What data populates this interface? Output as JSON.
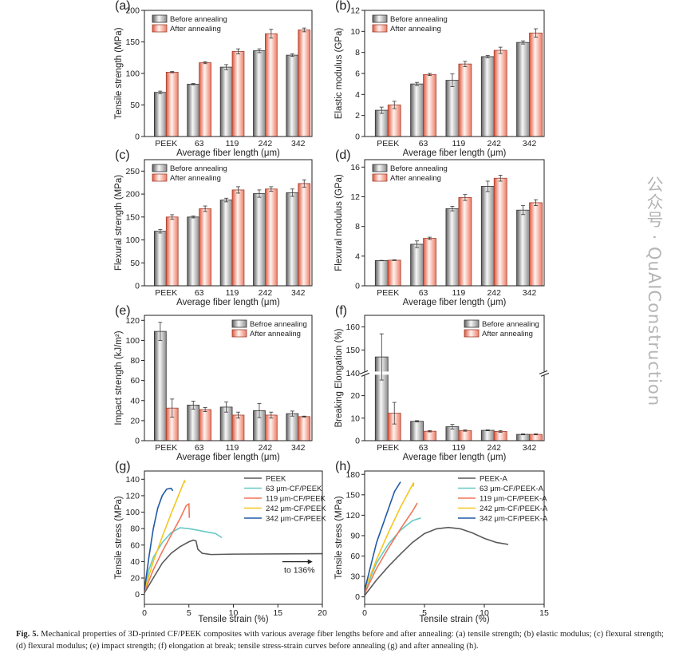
{
  "caption": {
    "label": "Fig. 5.",
    "text": "Mechanical properties of 3D-printed CF/PEEK composites with various average fiber lengths before and after annealing: (a) tensile strength; (b) elastic modulus; (c) flexural strength; (d) flexural modulus; (e) impact strength; (f) elongation at break; tensile stress-strain curves before annealing (g) and after annealing (h)."
  },
  "watermark": "公众号 · QuAIConstruction",
  "colors": {
    "before": "#808080",
    "after": "#e8705a"
  },
  "chart_data": [
    {
      "panel": "(a)",
      "type": "bar",
      "categories": [
        "PEEK",
        "63",
        "119",
        "242",
        "342"
      ],
      "xlabel": "Average fiber length (μm)",
      "ylabel": "Tensile strength (MPa)",
      "ylim": [
        0,
        200
      ],
      "yticks": [
        0,
        50,
        100,
        150,
        200
      ],
      "legend": "top-left",
      "series": [
        {
          "name": "Before annealing",
          "values": [
            70,
            83,
            110,
            136,
            129
          ],
          "errors": [
            2,
            1,
            4,
            3,
            2
          ]
        },
        {
          "name": "After annealing",
          "values": [
            102,
            117,
            135,
            163,
            169
          ],
          "errors": [
            1,
            1.5,
            4,
            7,
            3
          ]
        }
      ]
    },
    {
      "panel": "(b)",
      "type": "bar",
      "categories": [
        "PEEK",
        "63",
        "119",
        "242",
        "342"
      ],
      "xlabel": "Average fiber length (μm)",
      "ylabel": "Elastic modulus (GPa)",
      "ylim": [
        0,
        12
      ],
      "yticks": [
        0,
        2,
        4,
        6,
        8,
        10,
        12
      ],
      "legend": "top-left",
      "series": [
        {
          "name": "Before annealing",
          "values": [
            2.5,
            5.0,
            5.35,
            7.6,
            8.95
          ],
          "errors": [
            0.3,
            0.15,
            0.6,
            0.1,
            0.15
          ]
        },
        {
          "name": "After annealing",
          "values": [
            3.0,
            5.9,
            6.9,
            8.2,
            9.85
          ],
          "errors": [
            0.35,
            0.1,
            0.25,
            0.3,
            0.4
          ]
        }
      ]
    },
    {
      "panel": "(c)",
      "type": "bar",
      "categories": [
        "PEEK",
        "63",
        "119",
        "242",
        "342"
      ],
      "xlabel": "Average fiber length (μm)",
      "ylabel": "Flexural strength (MPa)",
      "ylim": [
        0,
        275
      ],
      "yticks": [
        0,
        50,
        100,
        150,
        200,
        250
      ],
      "legend": "top-left",
      "series": [
        {
          "name": "Before annealing",
          "values": [
            119,
            150,
            187,
            201,
            203
          ],
          "errors": [
            4,
            2,
            4,
            8,
            8
          ]
        },
        {
          "name": "After annealing",
          "values": [
            150,
            168,
            209,
            211,
            223
          ],
          "errors": [
            5,
            6,
            7,
            5,
            8
          ]
        }
      ]
    },
    {
      "panel": "(d)",
      "type": "bar",
      "categories": [
        "PEEK",
        "63",
        "119",
        "242",
        "342"
      ],
      "xlabel": "Average fiber length (μm)",
      "ylabel": "Flexural modulus (GPa)",
      "ylim": [
        0,
        17
      ],
      "yticks": [
        0,
        4,
        8,
        12,
        16
      ],
      "legend": "top-left",
      "series": [
        {
          "name": "Before annealing",
          "values": [
            3.4,
            5.6,
            10.4,
            13.4,
            10.2
          ],
          "errors": [
            0.03,
            0.45,
            0.3,
            0.7,
            0.6
          ]
        },
        {
          "name": "After annealing",
          "values": [
            3.45,
            6.4,
            11.9,
            14.5,
            11.2
          ],
          "errors": [
            0.05,
            0.15,
            0.4,
            0.4,
            0.4
          ]
        }
      ]
    },
    {
      "panel": "(e)",
      "type": "bar",
      "categories": [
        "PEEK",
        "63",
        "119",
        "242",
        "342"
      ],
      "xlabel": "Average fiber length (μm)",
      "ylabel": "Impact strength (kJ/m²)",
      "ylim": [
        0,
        125
      ],
      "yticks": [
        0,
        20,
        40,
        60,
        80,
        100,
        120
      ],
      "legend": "top-right",
      "series": [
        {
          "name": "Befroe annealing",
          "values": [
            109,
            35.5,
            33.5,
            30,
            27
          ],
          "errors": [
            9,
            4,
            5,
            7,
            2.5
          ]
        },
        {
          "name": "After annealing",
          "values": [
            32.5,
            31,
            25.5,
            25.5,
            24
          ],
          "errors": [
            9,
            2,
            3,
            3,
            0.5
          ]
        }
      ]
    },
    {
      "panel": "(f)",
      "type": "bar",
      "categories": [
        "PEEK",
        "63",
        "119",
        "242",
        "342"
      ],
      "xlabel": "Average fiber length (μm)",
      "ylabel": "Breaking Elongation (%)",
      "ylim": [
        0,
        165
      ],
      "axis_break": [
        30,
        140
      ],
      "yticks": [
        0,
        10,
        20,
        140,
        150,
        160
      ],
      "legend": "top-right",
      "series": [
        {
          "name": "Before annealing",
          "values": [
            147,
            8.6,
            6.2,
            4.6,
            2.8
          ],
          "errors": [
            10,
            0.3,
            1,
            0.2,
            0.2
          ]
        },
        {
          "name": "After annealing",
          "values": [
            12.2,
            4.2,
            4.5,
            4.1,
            2.8
          ],
          "errors": [
            4.8,
            0.3,
            0.3,
            0.4,
            0.2
          ]
        }
      ]
    },
    {
      "panel": "(g)",
      "type": "line",
      "xlabel": "Tensile strain (%)",
      "ylabel": "Tensile stress (MPa)",
      "xlim": [
        0,
        20
      ],
      "xticks": [
        0,
        5,
        10,
        15,
        20
      ],
      "ylim": [
        -12,
        150
      ],
      "yticks": [
        0,
        20,
        40,
        60,
        80,
        100,
        120,
        140
      ],
      "legend": "top-right",
      "annotation": "to 136%",
      "series": [
        {
          "name": "PEEK",
          "color": "#5a5a5a",
          "points": [
            [
              0,
              2
            ],
            [
              1,
              20
            ],
            [
              2,
              38
            ],
            [
              3,
              50
            ],
            [
              4,
              58
            ],
            [
              5,
              64
            ],
            [
              5.5,
              66
            ],
            [
              5.8,
              65
            ],
            [
              6,
              55
            ],
            [
              6.5,
              50
            ],
            [
              7.5,
              48.5
            ],
            [
              10,
              49
            ],
            [
              20,
              49.5
            ]
          ]
        },
        {
          "name": "63 μm-CF/PEEK",
          "color": "#66c9c4",
          "points": [
            [
              0,
              5
            ],
            [
              0.5,
              30
            ],
            [
              1,
              45
            ],
            [
              2,
              63
            ],
            [
              3,
              75
            ],
            [
              4,
              81
            ],
            [
              5,
              80
            ],
            [
              6,
              78
            ],
            [
              7,
              76
            ],
            [
              8,
              74
            ],
            [
              8.7,
              69
            ]
          ]
        },
        {
          "name": "119 μm-CF/PEEK",
          "color": "#f0765a",
          "points": [
            [
              0,
              3
            ],
            [
              1,
              30
            ],
            [
              2,
              52
            ],
            [
              3,
              72
            ],
            [
              4,
              92
            ],
            [
              4.7,
              108
            ],
            [
              5,
              110
            ],
            [
              5.05,
              93
            ]
          ]
        },
        {
          "name": "242 μm-CF/PEEK",
          "color": "#f6c51f",
          "points": [
            [
              0,
              5
            ],
            [
              1,
              40
            ],
            [
              2,
              70
            ],
            [
              3,
              98
            ],
            [
              4,
              125
            ],
            [
              4.5,
              138
            ],
            [
              4.6,
              136
            ]
          ]
        },
        {
          "name": "342 μm-CF/PEEK",
          "color": "#1f5aa6",
          "points": [
            [
              0,
              5
            ],
            [
              0.5,
              45
            ],
            [
              1,
              80
            ],
            [
              1.5,
              105
            ],
            [
              2,
              120
            ],
            [
              2.5,
              128
            ],
            [
              3,
              129
            ],
            [
              3.2,
              126
            ]
          ]
        }
      ]
    },
    {
      "panel": "(h)",
      "type": "line",
      "xlabel": "Tensile strain (%)",
      "ylabel": "Tensile stress (MPa)",
      "xlim": [
        0,
        15
      ],
      "xticks": [
        0,
        5,
        10,
        15
      ],
      "ylim": [
        -11,
        185
      ],
      "yticks": [
        0,
        30,
        60,
        90,
        120,
        150,
        180
      ],
      "legend": "top-right",
      "series": [
        {
          "name": "PEEK-A",
          "color": "#5a5a5a",
          "points": [
            [
              0,
              2
            ],
            [
              1,
              25
            ],
            [
              2,
              45
            ],
            [
              3,
              63
            ],
            [
              4,
              80
            ],
            [
              5,
              93
            ],
            [
              6,
              100
            ],
            [
              7,
              102
            ],
            [
              8,
              100
            ],
            [
              9,
              94
            ],
            [
              10,
              86
            ],
            [
              11,
              80
            ],
            [
              12,
              77
            ]
          ]
        },
        {
          "name": "63 μm-CF/PEEK-A",
          "color": "#66c9c4",
          "points": [
            [
              0,
              8
            ],
            [
              1,
              50
            ],
            [
              2,
              78
            ],
            [
              3,
              98
            ],
            [
              4,
              112
            ],
            [
              4.7,
              116
            ]
          ]
        },
        {
          "name": "119 μm-CF/PEEK-A",
          "color": "#f0765a",
          "points": [
            [
              0,
              5
            ],
            [
              1,
              42
            ],
            [
              2,
              72
            ],
            [
              3,
              100
            ],
            [
              4,
              126
            ],
            [
              4.4,
              138
            ]
          ]
        },
        {
          "name": "242 μm-CF/PEEK-A",
          "color": "#f6c51f",
          "points": [
            [
              0,
              10
            ],
            [
              1,
              55
            ],
            [
              2,
              95
            ],
            [
              3,
              132
            ],
            [
              4,
              165
            ],
            [
              4.1,
              168
            ],
            [
              4.05,
              162
            ]
          ]
        },
        {
          "name": "342 μm-CF/PEEK-A",
          "color": "#1f5aa6",
          "points": [
            [
              0,
              10
            ],
            [
              1,
              80
            ],
            [
              2,
              130
            ],
            [
              2.5,
              155
            ],
            [
              3,
              169
            ]
          ]
        }
      ]
    }
  ]
}
